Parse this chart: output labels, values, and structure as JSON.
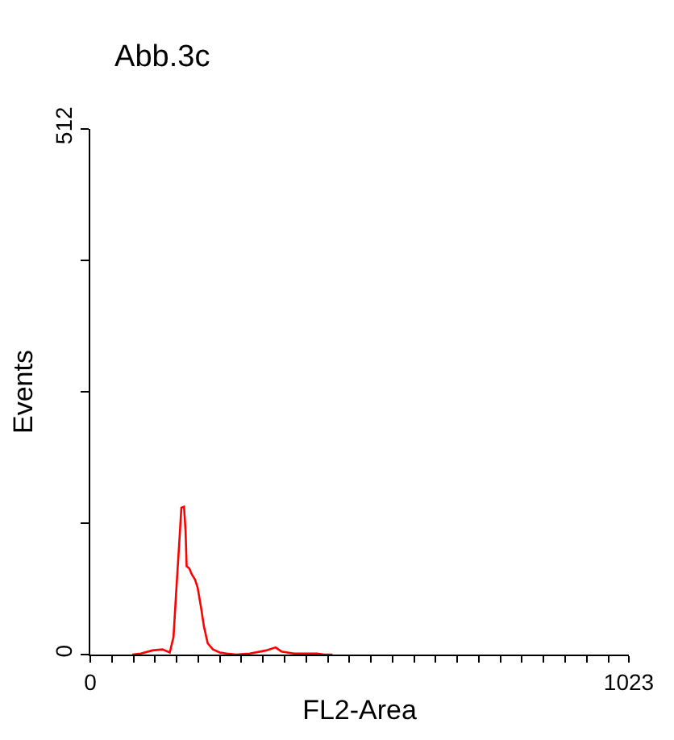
{
  "chart_data": {
    "type": "line",
    "title": "Abb.3c",
    "xlabel": "FL2-Area",
    "ylabel": "Events",
    "x": [
      80,
      96,
      118,
      137,
      151,
      158,
      164,
      169,
      173,
      178,
      181,
      183,
      188,
      193,
      199,
      204,
      210,
      216,
      223,
      233,
      246,
      259,
      277,
      303,
      334,
      352,
      363,
      387,
      431,
      444,
      460
    ],
    "series": [
      {
        "color": "#ff0000",
        "values": [
          0,
          1,
          4,
          5,
          2,
          17,
          68,
          109,
          143,
          144,
          120,
          86,
          84,
          78,
          73,
          65,
          47,
          27,
          11,
          5,
          2,
          1,
          0,
          1,
          4,
          7,
          3,
          1,
          1,
          0,
          0
        ]
      }
    ],
    "xlim": [
      0,
      1023
    ],
    "ylim": [
      0,
      512
    ],
    "xticks": [
      0,
      {
        "value": 41,
        "label": null
      },
      {
        "value": 82,
        "label": null
      },
      {
        "value": 123,
        "label": null
      },
      {
        "value": 164,
        "label": null
      },
      {
        "value": 205,
        "label": null
      },
      {
        "value": 246,
        "label": null
      },
      {
        "value": 287,
        "label": null
      },
      {
        "value": 328,
        "label": null
      },
      {
        "value": 369,
        "label": null
      },
      {
        "value": 410,
        "label": null
      },
      {
        "value": 451,
        "label": null
      },
      {
        "value": 492,
        "label": null
      },
      {
        "value": 533,
        "label": null
      },
      {
        "value": 574,
        "label": null
      },
      {
        "value": 615,
        "label": null
      },
      {
        "value": 656,
        "label": null
      },
      {
        "value": 697,
        "label": null
      },
      {
        "value": 738,
        "label": null
      },
      {
        "value": 779,
        "label": null
      },
      {
        "value": 820,
        "label": null
      },
      {
        "value": 861,
        "label": null
      },
      {
        "value": 902,
        "label": null
      },
      {
        "value": 943,
        "label": null
      },
      {
        "value": 984,
        "label": null
      },
      1023
    ],
    "yticks": [
      0,
      {
        "value": 128,
        "label": null
      },
      {
        "value": 256,
        "label": null
      },
      {
        "value": 384,
        "label": null
      },
      512
    ],
    "marker": "none",
    "line_style": "solid"
  }
}
